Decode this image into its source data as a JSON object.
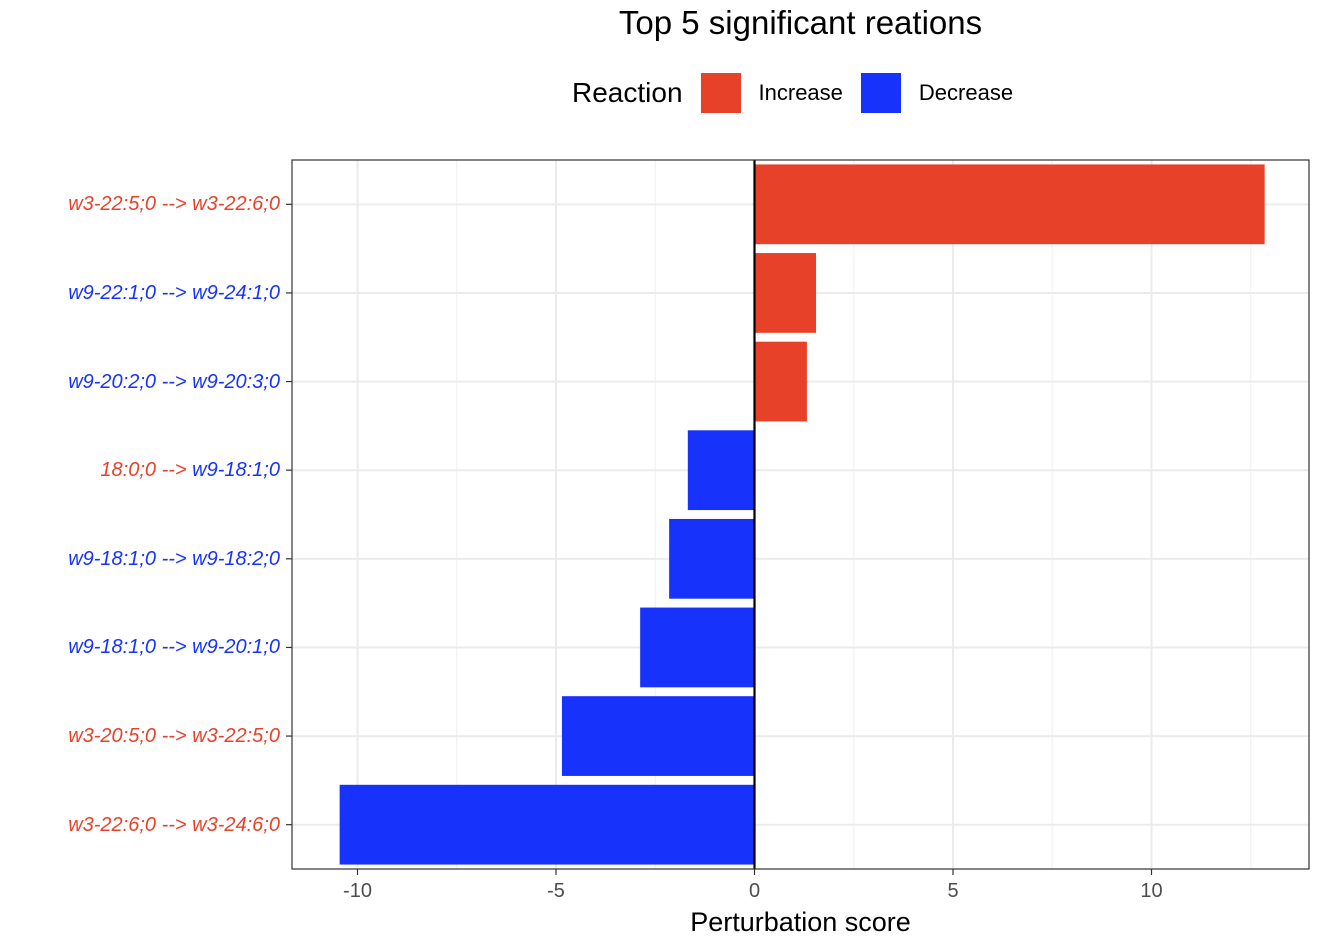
{
  "chart_data": {
    "type": "bar",
    "orientation": "horizontal",
    "title": "Top 5 significant reations",
    "xlabel": "Perturbation score",
    "ylabel": "",
    "xlim": [
      -10.5,
      13.0
    ],
    "xticks": [
      -10,
      -5,
      0,
      5,
      10
    ],
    "xtick_labels": [
      "-10",
      "-5",
      "0",
      "5",
      "10"
    ],
    "grid": true,
    "legend": {
      "title": "Reaction",
      "placement": "top",
      "items": [
        {
          "label": "Increase",
          "color": "#E8412A"
        },
        {
          "label": "Decrease",
          "color": "#1733FB"
        }
      ]
    },
    "categories": [
      {
        "parts": [
          {
            "text": "w3-22:5;0",
            "color": "#E8412A"
          },
          {
            "text": " --> ",
            "color": "#E8412A"
          },
          {
            "text": "w3-22:6;0",
            "color": "#E8412A"
          }
        ],
        "value": 12.85,
        "reaction": "Increase"
      },
      {
        "parts": [
          {
            "text": "w9-22:1;0",
            "color": "#1733FB"
          },
          {
            "text": " --> ",
            "color": "#1733FB"
          },
          {
            "text": "w9-24:1;0",
            "color": "#1733FB"
          }
        ],
        "value": 1.55,
        "reaction": "Increase"
      },
      {
        "parts": [
          {
            "text": "w9-20:2;0",
            "color": "#1733FB"
          },
          {
            "text": " --> ",
            "color": "#1733FB"
          },
          {
            "text": "w9-20:3;0",
            "color": "#1733FB"
          }
        ],
        "value": 1.32,
        "reaction": "Increase"
      },
      {
        "parts": [
          {
            "text": "18:0;0",
            "color": "#E8412A"
          },
          {
            "text": " --> ",
            "color": "#E8412A"
          },
          {
            "text": "w9-18:1;0",
            "color": "#1733FB"
          }
        ],
        "value": -1.68,
        "reaction": "Decrease"
      },
      {
        "parts": [
          {
            "text": "w9-18:1;0",
            "color": "#1733FB"
          },
          {
            "text": " --> ",
            "color": "#1733FB"
          },
          {
            "text": "w9-18:2;0",
            "color": "#1733FB"
          }
        ],
        "value": -2.15,
        "reaction": "Decrease"
      },
      {
        "parts": [
          {
            "text": "w9-18:1;0",
            "color": "#1733FB"
          },
          {
            "text": " --> ",
            "color": "#1733FB"
          },
          {
            "text": "w9-20:1;0",
            "color": "#1733FB"
          }
        ],
        "value": -2.88,
        "reaction": "Decrease"
      },
      {
        "parts": [
          {
            "text": "w3-20:5;0",
            "color": "#E8412A"
          },
          {
            "text": " --> ",
            "color": "#E8412A"
          },
          {
            "text": "w3-22:5;0",
            "color": "#E8412A"
          }
        ],
        "value": -4.85,
        "reaction": "Decrease"
      },
      {
        "parts": [
          {
            "text": "w3-22:6;0",
            "color": "#E8412A"
          },
          {
            "text": " --> ",
            "color": "#E8412A"
          },
          {
            "text": "w3-24:6;0",
            "color": "#E8412A"
          }
        ],
        "value": -10.45,
        "reaction": "Decrease"
      }
    ]
  }
}
